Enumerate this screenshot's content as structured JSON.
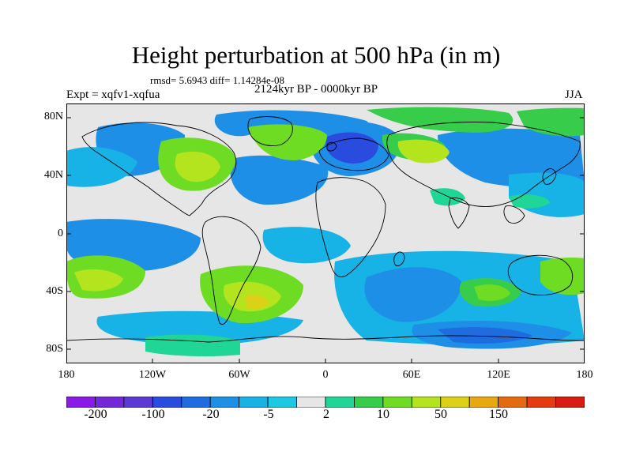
{
  "title": "Height perturbation at 500 hPa (in m)",
  "stats": "rmsd= 5.6943 diff= 1.14284e-08",
  "experiment": "Expt = xqfv1-xqfua",
  "period": "2124kyr BP - 0000kyr BP",
  "season": "JJA",
  "map": {
    "y_ticks": [
      "80N",
      "40N",
      "0",
      "40S",
      "80S"
    ],
    "x_ticks": [
      "180",
      "120W",
      "60W",
      "0",
      "60E",
      "120E",
      "180"
    ],
    "lon_range": [
      -180,
      180
    ],
    "lat_range": [
      -90,
      90
    ]
  },
  "colorbar": {
    "labels": [
      "-200",
      "-100",
      "-20",
      "-5",
      "2",
      "10",
      "50",
      "150"
    ],
    "colors": [
      "#8a1ae6",
      "#7328d8",
      "#5a3ad2",
      "#2a4cde",
      "#1f6be0",
      "#1e8fe6",
      "#17b2e6",
      "#1cc8e2",
      "#e6e6e6",
      "#20d696",
      "#37cd4a",
      "#6fdc24",
      "#b4e41e",
      "#dcd018",
      "#e8a810",
      "#e46a10",
      "#e43c10",
      "#d81c12"
    ]
  }
}
